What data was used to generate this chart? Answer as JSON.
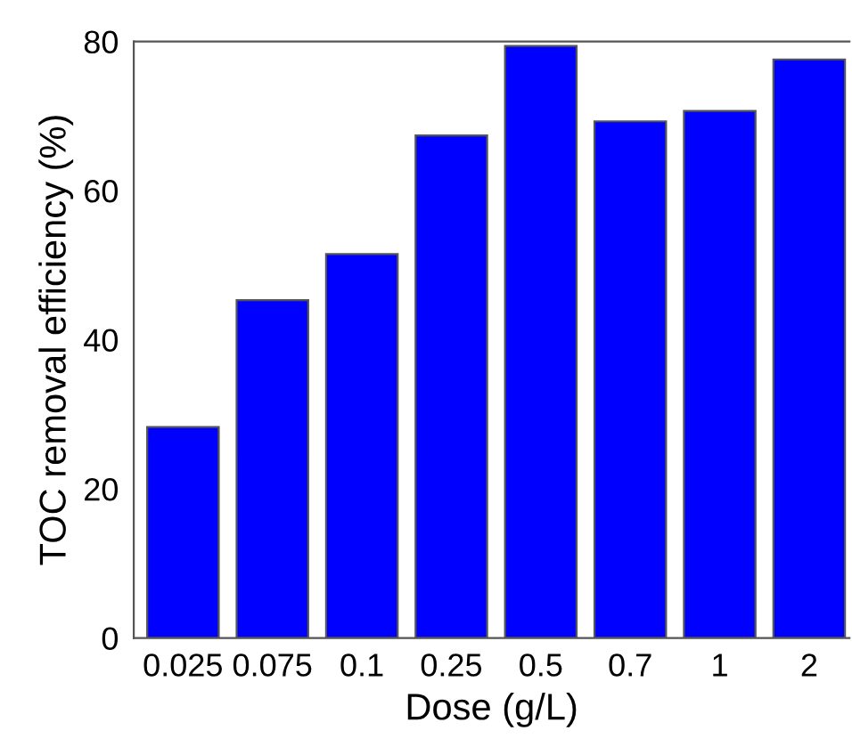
{
  "chart_data": {
    "type": "bar",
    "xlabel": "Dose (g/L)",
    "ylabel": "TOC removal efficiency (%)",
    "categories": [
      "0.025",
      "0.075",
      "0.1",
      "0.25",
      "0.5",
      "0.7",
      "1",
      "2"
    ],
    "values": [
      28.3,
      45.3,
      51.5,
      67.4,
      79.4,
      69.3,
      70.7,
      77.6
    ],
    "color": "#0000ff",
    "ylim": [
      0,
      80
    ],
    "yticks": [
      0,
      20,
      40,
      60,
      80
    ],
    "grid": false,
    "legend": false
  }
}
